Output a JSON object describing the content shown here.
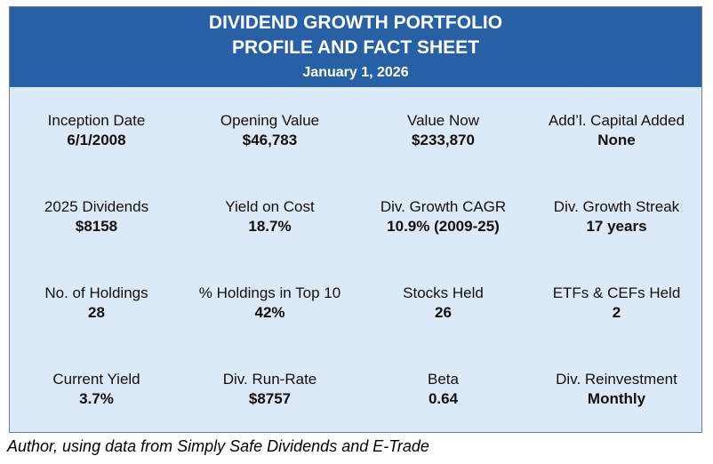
{
  "header": {
    "title_line1": "DIVIDEND GROWTH PORTFOLIO",
    "title_line2": "PROFILE AND FACT SHEET",
    "date": "January 1, 2026"
  },
  "facts": [
    {
      "label": "Inception Date",
      "value": "6/1/2008"
    },
    {
      "label": "Opening Value",
      "value": "$46,783"
    },
    {
      "label": "Value Now",
      "value": "$233,870"
    },
    {
      "label": "Add’l. Capital Added",
      "value": "None"
    },
    {
      "label": "2025 Dividends",
      "value": "$8158"
    },
    {
      "label": "Yield on Cost",
      "value": "18.7%"
    },
    {
      "label": "Div. Growth CAGR",
      "value": "10.9% (2009-25)"
    },
    {
      "label": "Div. Growth Streak",
      "value": "17 years"
    },
    {
      "label": "No. of Holdings",
      "value": "28"
    },
    {
      "label": "% Holdings in Top 10",
      "value": "42%"
    },
    {
      "label": "Stocks Held",
      "value": "26"
    },
    {
      "label": "ETFs & CEFs Held",
      "value": "2"
    },
    {
      "label": "Current Yield",
      "value": "3.7%"
    },
    {
      "label": "Div. Run-Rate",
      "value": "$8757"
    },
    {
      "label": "Beta",
      "value": "0.64"
    },
    {
      "label": "Div. Reinvestment",
      "value": "Monthly"
    }
  ],
  "caption": "Author, using data from Simply Safe Dividends and E-Trade",
  "colors": {
    "header_bg": "#2760a4",
    "body_bg": "#dce9f7"
  }
}
